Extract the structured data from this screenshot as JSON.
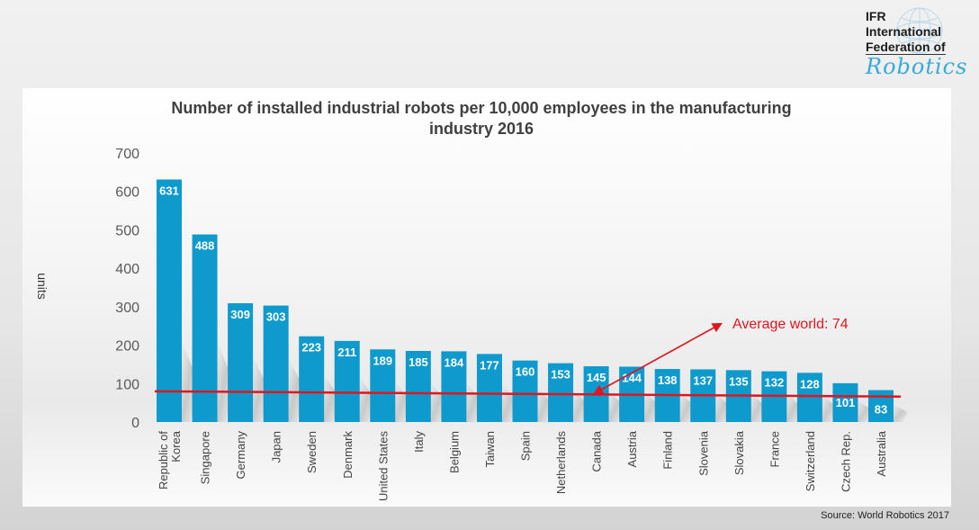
{
  "logo": {
    "line1": "IFR",
    "line2": "International",
    "line3": "Federation of",
    "script": "Robotics"
  },
  "source": "Source: World Robotics 2017",
  "colors": {
    "bar": "#0e9acd",
    "average_line": "#e0161e",
    "value_label": "#ffffff"
  },
  "chart_data": {
    "type": "bar",
    "title_lines": [
      "Number of installed industrial robots per 10,000 employees in the manufacturing",
      "industry 2016"
    ],
    "xlabel": "",
    "ylabel": "units",
    "ylim": [
      0,
      700
    ],
    "yticks": [
      0,
      100,
      200,
      300,
      400,
      500,
      600,
      700
    ],
    "grid": false,
    "categories": [
      [
        "Republic of",
        "Korea"
      ],
      [
        "Singapore"
      ],
      [
        "Germany"
      ],
      [
        "Japan"
      ],
      [
        "Sweden"
      ],
      [
        "Denmark"
      ],
      [
        "United States"
      ],
      [
        "Italy"
      ],
      [
        "Belgium"
      ],
      [
        "Taiwan"
      ],
      [
        "Spain"
      ],
      [
        "Netherlands"
      ],
      [
        "Canada"
      ],
      [
        "Austria"
      ],
      [
        "Finland"
      ],
      [
        "Slovenia"
      ],
      [
        "Slovakia"
      ],
      [
        "France"
      ],
      [
        "Switzerland"
      ],
      [
        "Czech Rep."
      ],
      [
        "Australia"
      ]
    ],
    "values": [
      631,
      488,
      309,
      303,
      223,
      211,
      189,
      185,
      184,
      177,
      160,
      153,
      145,
      144,
      138,
      137,
      135,
      132,
      128,
      101,
      83
    ],
    "reference_line": {
      "label": "Average world: 74",
      "value": 74,
      "start_value": 80,
      "end_value": 66
    }
  }
}
